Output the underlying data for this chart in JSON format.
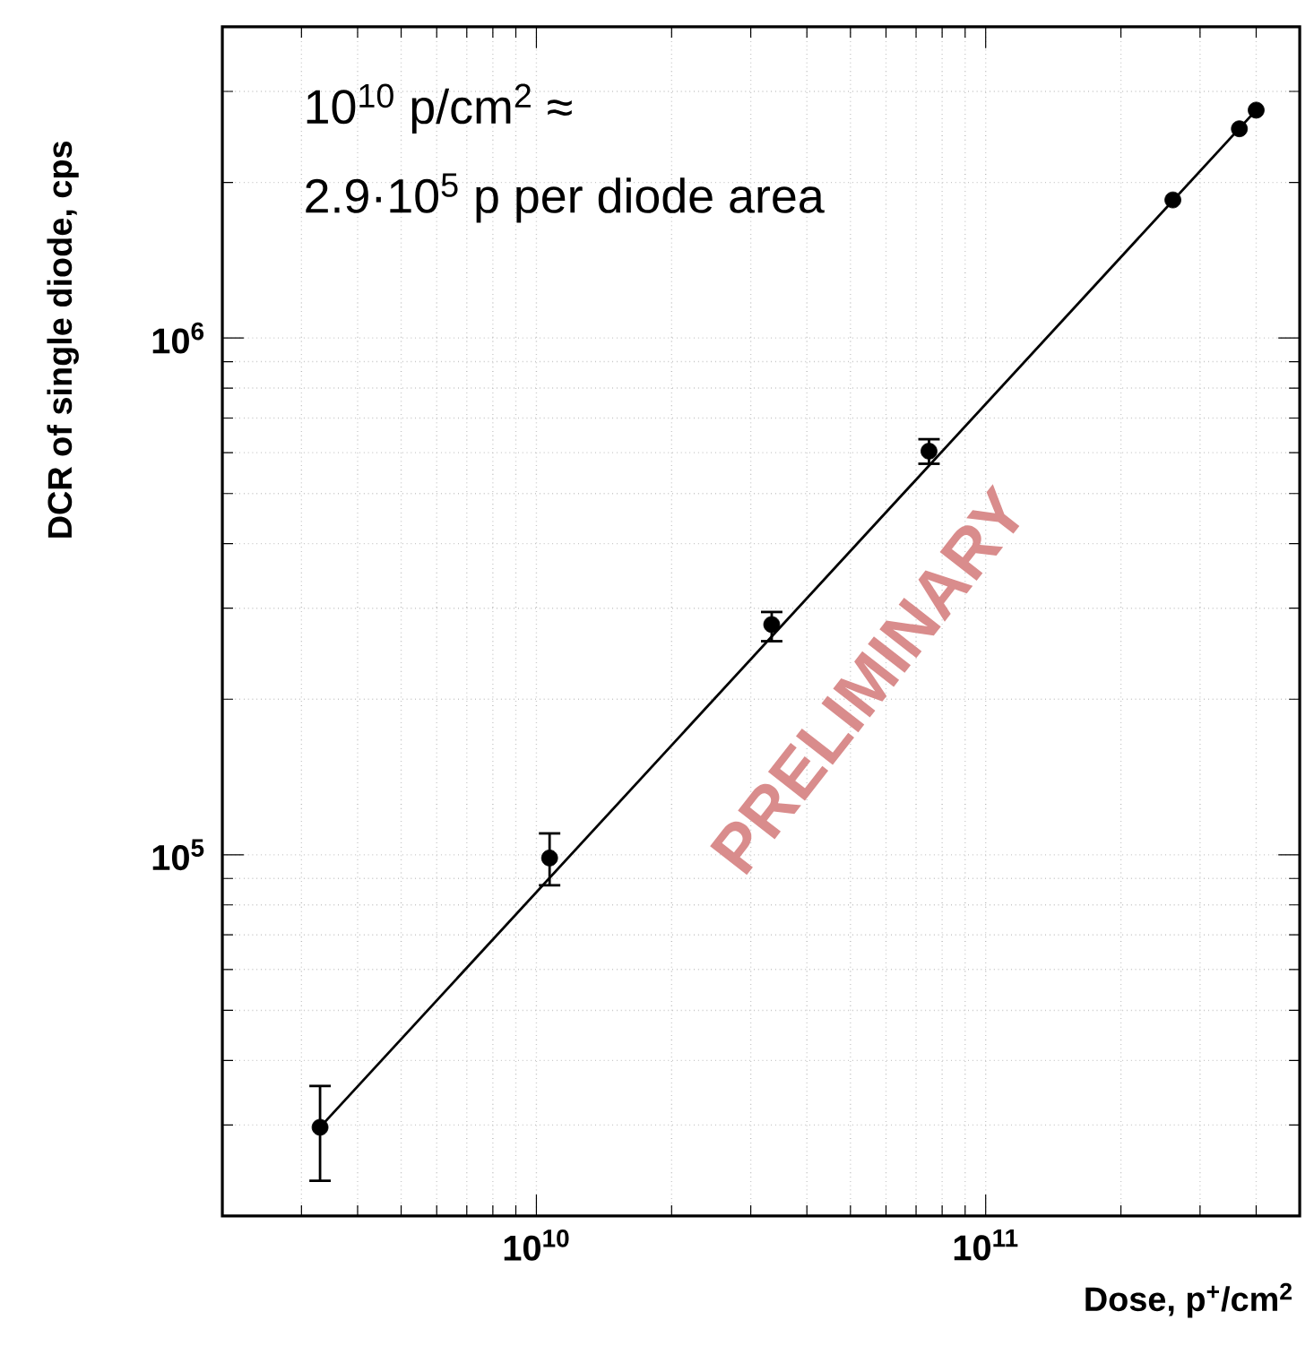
{
  "chart_data": {
    "type": "scatter",
    "xlabel": "Dose, p$^{+}$/cm$^{2}$",
    "ylabel": "DCR of single diode, cps",
    "log": "xy",
    "grid": true,
    "xlim": [
      2000000000.0,
      500000000000.0
    ],
    "ylim": [
      20000.0,
      4000000.0
    ],
    "xticks": [
      {
        "value": 10000000000.0,
        "label": "10$^{10}$"
      },
      {
        "value": 100000000000.0,
        "label": "10$^{11}$"
      }
    ],
    "yticks": [
      {
        "value": 100000.0,
        "label": "10$^{5}$"
      },
      {
        "value": 1000000.0,
        "label": "10$^{6}$"
      }
    ],
    "annotations": [
      "10$^{10}$ p/cm$^{2}$ ≈",
      "2.9·10$^{5}$ p per diode area",
      "PRELIMINARY"
    ],
    "series": [
      {
        "color": "#000000",
        "marker": "circle",
        "x": [
          3300000000.0,
          10700000000.0,
          33400000000.0,
          74800000000.0,
          261000000000.0,
          367000000000.0,
          400000000000.0
        ],
        "values": [
          29700.0,
          98600.0,
          279000.0,
          604000.0,
          1850000.0,
          2540000.0,
          2760000.0
        ],
        "errors": [
          [
            23400.0,
            35700.0
          ],
          [
            87300.0,
            110000.0
          ],
          [
            259000.0,
            295000.0
          ],
          [
            571000.0,
            637000.0
          ],
          null,
          null,
          null
        ]
      },
      {
        "type": "line",
        "color": "#000000",
        "line_style": "solid",
        "marker": "none",
        "x": [
          3300000000.0,
          400000000000.0
        ],
        "values": [
          29700.0,
          2760000.0
        ]
      }
    ]
  }
}
